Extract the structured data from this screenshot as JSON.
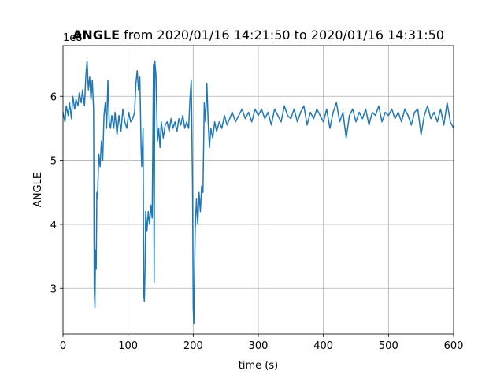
{
  "chart_data": {
    "type": "line",
    "title_bold": "ANGLE",
    "title": "from 2020/01/16 14:21:50 to 2020/01/16 14:31:50",
    "xlabel": "time (s)",
    "ylabel": "ANGLE",
    "y_offset_text": "1e8",
    "color": "#1f77b4",
    "grid": true,
    "xlim": [
      0,
      600
    ],
    "xticks": [
      0,
      100,
      200,
      300,
      400,
      500,
      600
    ],
    "ylim": [
      2.29,
      6.79
    ],
    "yticks": [
      3,
      4,
      5,
      6
    ],
    "x": [
      0,
      3,
      5,
      8,
      10,
      13,
      15,
      18,
      20,
      23,
      25,
      28,
      30,
      33,
      35,
      37,
      39,
      41,
      43,
      45,
      47,
      48,
      49,
      50,
      51,
      52,
      53,
      55,
      57,
      59,
      61,
      63,
      65,
      67,
      69,
      71,
      73,
      75,
      78,
      80,
      83,
      86,
      89,
      92,
      95,
      98,
      101,
      104,
      107,
      110,
      112,
      114,
      116,
      118,
      120,
      121,
      123,
      124,
      125,
      126,
      127,
      129,
      131,
      133,
      135,
      137,
      139,
      140,
      141,
      143,
      145,
      147,
      149,
      151,
      154,
      157,
      160,
      163,
      166,
      169,
      172,
      175,
      178,
      181,
      184,
      187,
      190,
      193,
      195,
      197,
      199,
      200,
      201,
      203,
      205,
      207,
      209,
      211,
      213,
      215,
      217,
      219,
      221,
      223,
      225,
      227,
      230,
      233,
      236,
      240,
      244,
      248,
      252,
      256,
      260,
      265,
      270,
      275,
      280,
      285,
      290,
      295,
      300,
      305,
      310,
      315,
      320,
      325,
      330,
      335,
      340,
      345,
      350,
      355,
      360,
      365,
      370,
      375,
      380,
      385,
      390,
      395,
      400,
      405,
      410,
      415,
      420,
      425,
      430,
      435,
      440,
      445,
      450,
      455,
      460,
      465,
      470,
      475,
      480,
      485,
      490,
      495,
      500,
      505,
      510,
      515,
      520,
      525,
      530,
      535,
      540,
      545,
      550,
      555,
      560,
      565,
      570,
      575,
      580,
      585,
      590,
      595,
      600
    ],
    "values": [
      5.75,
      5.6,
      5.85,
      5.7,
      5.9,
      5.65,
      6.0,
      5.8,
      5.95,
      5.85,
      6.05,
      5.9,
      6.1,
      5.85,
      6.3,
      6.55,
      6.1,
      6.3,
      5.95,
      6.25,
      5.8,
      3.0,
      2.7,
      3.6,
      3.3,
      4.5,
      4.4,
      5.1,
      4.9,
      5.3,
      5.0,
      5.7,
      5.9,
      5.5,
      6.25,
      5.6,
      5.5,
      5.7,
      5.5,
      5.75,
      5.4,
      5.7,
      5.45,
      5.8,
      5.6,
      5.5,
      5.75,
      5.6,
      5.65,
      5.75,
      6.2,
      6.4,
      6.1,
      6.3,
      5.2,
      4.9,
      5.5,
      2.9,
      2.8,
      3.3,
      4.2,
      3.9,
      4.2,
      4.0,
      4.3,
      4.1,
      6.5,
      3.1,
      6.55,
      6.3,
      5.3,
      5.5,
      5.2,
      5.6,
      5.35,
      5.55,
      5.6,
      5.45,
      5.65,
      5.5,
      5.6,
      5.45,
      5.65,
      5.55,
      5.7,
      5.5,
      5.6,
      5.5,
      5.95,
      6.25,
      4.6,
      2.7,
      2.45,
      3.9,
      4.4,
      4.0,
      4.5,
      4.2,
      4.6,
      4.5,
      5.9,
      5.6,
      6.2,
      5.6,
      5.2,
      5.5,
      5.35,
      5.6,
      5.45,
      5.6,
      5.5,
      5.7,
      5.55,
      5.65,
      5.75,
      5.6,
      5.7,
      5.8,
      5.65,
      5.75,
      5.6,
      5.8,
      5.7,
      5.8,
      5.65,
      5.75,
      5.55,
      5.8,
      5.7,
      5.6,
      5.85,
      5.7,
      5.65,
      5.8,
      5.6,
      5.75,
      5.85,
      5.55,
      5.75,
      5.65,
      5.8,
      5.7,
      5.6,
      5.8,
      5.5,
      5.75,
      5.9,
      5.6,
      5.75,
      5.35,
      5.7,
      5.8,
      5.6,
      5.75,
      5.65,
      5.8,
      5.55,
      5.75,
      5.7,
      5.85,
      5.6,
      5.75,
      5.7,
      5.8,
      5.65,
      5.75,
      5.6,
      5.8,
      5.7,
      5.55,
      5.75,
      5.8,
      5.4,
      5.7,
      5.85,
      5.65,
      5.75,
      5.6,
      5.8,
      5.55,
      5.9,
      5.6,
      5.5
    ]
  }
}
